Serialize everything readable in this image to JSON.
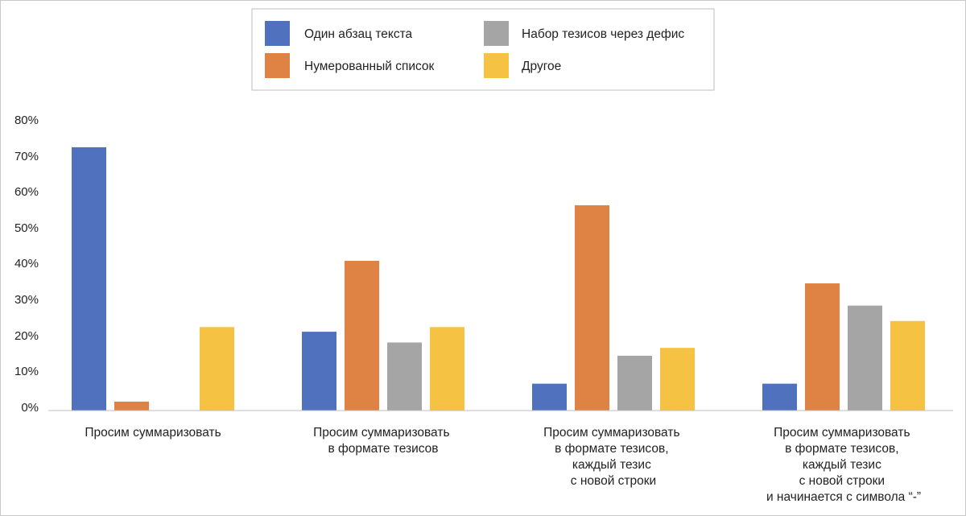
{
  "chart_data": {
    "type": "bar",
    "y_tick_labels": [
      "0%",
      "10%",
      "20%",
      "30%",
      "40%",
      "50%",
      "60%",
      "70%",
      "80%"
    ],
    "ylim": [
      0,
      80
    ],
    "grid": false,
    "legend_position": "top-center",
    "categories": [
      [
        "Просим суммаризовать"
      ],
      [
        "Просим суммаризовать",
        "в формате тезисов"
      ],
      [
        "Просим суммаризовать",
        "в формате тезисов,",
        "каждый тезис",
        "с новой строки"
      ],
      [
        "Просим суммаризовать",
        "в формате тезисов,",
        "каждый тезис",
        "с новой строки",
        "и начинается с символа “-”"
      ]
    ],
    "series": [
      {
        "name": "Один абзац текста",
        "color": "#4f71be",
        "values": [
          73.5,
          22,
          7.5,
          7.5
        ]
      },
      {
        "name": "Нумерованный список",
        "color": "#de8344",
        "values": [
          2.5,
          41.8,
          57.3,
          35.5
        ]
      },
      {
        "name": "Набор тезисов через дефис",
        "color": "#a5a5a5",
        "values": [
          0,
          19,
          15.3,
          29.3
        ]
      },
      {
        "name": "Другое",
        "color": "#f6c243",
        "values": [
          23.3,
          23.3,
          17.5,
          25
        ]
      }
    ]
  }
}
